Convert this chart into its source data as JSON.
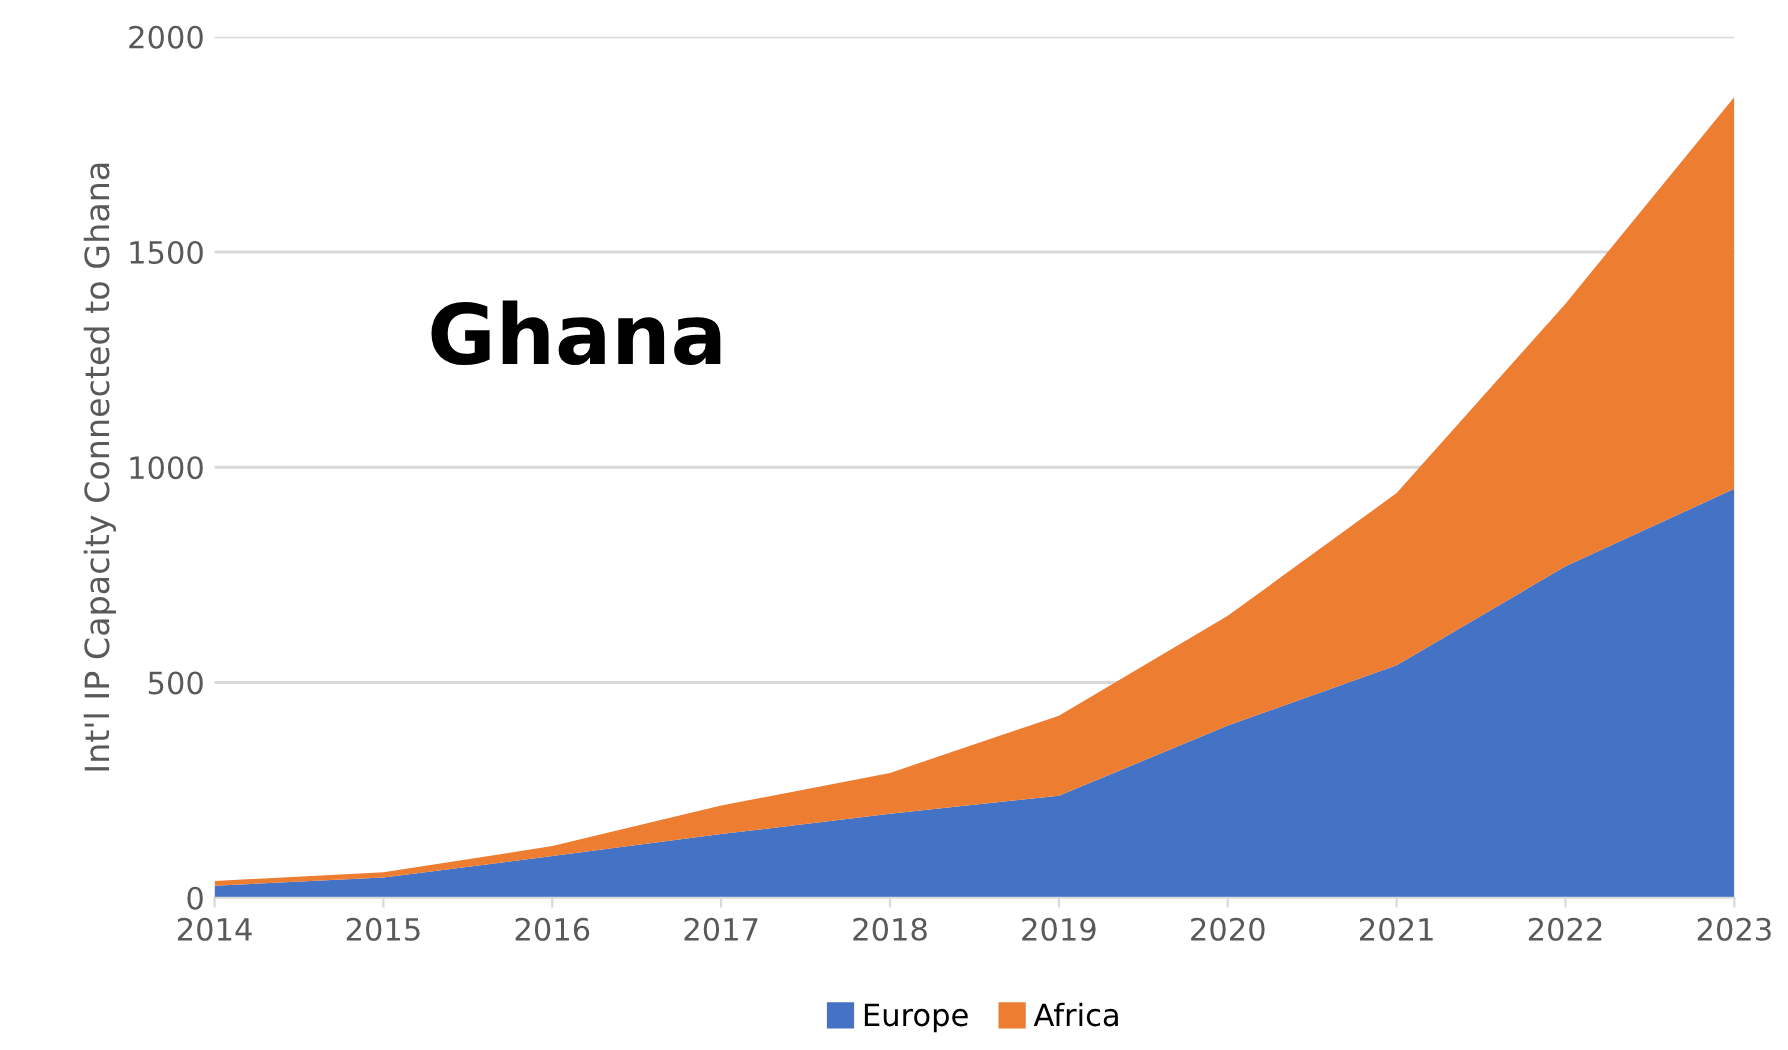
{
  "chart_data": {
    "type": "area",
    "stacked": true,
    "ylabel": "Int'l IP Capacity Connected to Ghana",
    "annotations": [
      "Ghana"
    ],
    "x": [
      2014,
      2015,
      2016,
      2017,
      2018,
      2019,
      2020,
      2021,
      2022,
      2023
    ],
    "series": [
      {
        "name": "Europe",
        "color": "#4472c4",
        "values": [
          28,
          47,
          97,
          148,
          195,
          237,
          400,
          540,
          770,
          950
        ]
      },
      {
        "name": "Africa",
        "color": "#ed7d31",
        "values": [
          11,
          12,
          23,
          66,
          95,
          186,
          255,
          400,
          610,
          910
        ]
      }
    ],
    "xlim": [
      2014,
      2023
    ],
    "xticks": [
      2014,
      2015,
      2016,
      2017,
      2018,
      2019,
      2020,
      2021,
      2022,
      2023
    ],
    "ylim": [
      0,
      2000
    ],
    "yticks": [
      0,
      500,
      1000,
      1500,
      2000
    ],
    "grid": "y",
    "legend": "bottom"
  }
}
